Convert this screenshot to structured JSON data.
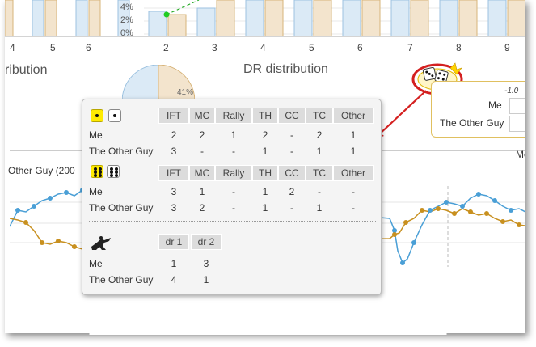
{
  "top_chart": {
    "y_ticks": [
      "4%",
      "2%",
      "0%"
    ],
    "x_ticks": [
      "4",
      "5",
      "6",
      "2",
      "3",
      "4",
      "5",
      "6",
      "7",
      "8",
      "9"
    ]
  },
  "sections": {
    "left_title": "ribution",
    "dr_title": "DR distribution"
  },
  "pie": {
    "label": "41%",
    "pct": 41
  },
  "side_panel": {
    "value_hint": "-1.0",
    "me_label": "Me",
    "other_label": "The Other Guy"
  },
  "line_chart": {
    "series_label": "Other Guy (200",
    "right_label": "Mo"
  },
  "popup": {
    "table1": {
      "headers": [
        "IFT",
        "MC",
        "Rally",
        "TH",
        "CC",
        "TC",
        "Other"
      ],
      "rows": [
        {
          "label": "Me",
          "values": [
            "2",
            "2",
            "1",
            "2",
            "-",
            "2",
            "1"
          ]
        },
        {
          "label": "The Other Guy",
          "values": [
            "3",
            "-",
            "-",
            "1",
            "-",
            "1",
            "1"
          ]
        }
      ]
    },
    "table2": {
      "headers": [
        "IFT",
        "MC",
        "Rally",
        "TH",
        "CC",
        "TC",
        "Other"
      ],
      "rows": [
        {
          "label": "Me",
          "values": [
            "3",
            "1",
            "-",
            "1",
            "2",
            "-",
            "-"
          ]
        },
        {
          "label": "The Other Guy",
          "values": [
            "3",
            "2",
            "-",
            "1",
            "-",
            "1",
            "-"
          ]
        }
      ]
    },
    "table3": {
      "headers": [
        "dr 1",
        "dr 2"
      ],
      "rows": [
        {
          "label": "Me",
          "values": [
            "1",
            "3"
          ]
        },
        {
          "label": "The Other Guy",
          "values": [
            "4",
            "1"
          ]
        }
      ]
    }
  },
  "colors": {
    "blue": "#4a9fd6",
    "orange": "#c8901f",
    "bar_blue_fill": "#dbeaf6",
    "bar_orange_fill": "#f3e4cd",
    "arrow": "#d42020",
    "dice_yellow": "#ffeb00"
  },
  "icons": [
    "dice-pair-icon",
    "single-die-icon",
    "double-six-dice-icon",
    "sniper-icon",
    "dice-badge-icon",
    "red-arrow-icon"
  ]
}
